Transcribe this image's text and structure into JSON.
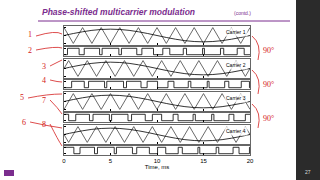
{
  "title": "Phase-shifted multicarrier modulation",
  "subtitle": "(contd.)",
  "page_number": "27",
  "annotations": [
    "1",
    "2",
    "3",
    "4",
    "5",
    "7",
    "6",
    "8",
    "90°",
    "90°",
    "90°"
  ],
  "chart_data": [
    {
      "type": "line",
      "label": "Carrier 1",
      "tick_labels": false,
      "grid": false,
      "xlim": [
        0,
        20
      ],
      "xticks": [
        0,
        5,
        10,
        15,
        20
      ],
      "ylim": [
        -1.2,
        1.2
      ],
      "yticks": [
        -1,
        0,
        1
      ],
      "series": [
        {
          "color": "#444444",
          "line_style": "solid",
          "x": [
            0,
            1,
            2,
            3,
            4,
            5,
            6,
            7,
            8,
            9,
            10,
            11,
            12,
            13,
            14,
            15,
            16,
            17,
            18,
            19,
            20
          ],
          "values": [
            1,
            -1,
            1,
            -1,
            1,
            -1,
            1,
            -1,
            1,
            -1,
            1,
            -1,
            1,
            -1,
            1,
            -1,
            1,
            -1,
            1,
            -1,
            1
          ]
        },
        {
          "color": "#000000",
          "line_style": "spline",
          "x": [
            0,
            1,
            2,
            3,
            4,
            5,
            6,
            7,
            8,
            9,
            10,
            11,
            12,
            13,
            14,
            15,
            16,
            17,
            18,
            19,
            20
          ],
          "values": [
            0,
            0.25,
            0.47,
            0.65,
            0.76,
            0.8,
            0.76,
            0.65,
            0.47,
            0.25,
            0,
            -0.25,
            -0.47,
            -0.65,
            -0.76,
            -0.8,
            -0.76,
            -0.65,
            -0.47,
            -0.25,
            0
          ]
        }
      ],
      "pulse": {
        "color": "#000000",
        "line_style": "step",
        "ylim": [
          -0.2,
          1.2
        ],
        "yticks": [
          0,
          1
        ],
        "x": [
          0,
          0.375,
          1.625,
          2.175,
          3.825,
          4.1,
          5.9,
          6.175,
          7.825,
          8.375,
          9.625,
          10.625,
          11.375,
          12.825,
          13.175,
          14.9,
          15.1,
          16.825,
          17.175,
          18.625,
          19.375,
          20
        ],
        "values": [
          0,
          1,
          0,
          1,
          0,
          1,
          0,
          1,
          0,
          1,
          0,
          1,
          0,
          1,
          0,
          1,
          0,
          1,
          0,
          1,
          0,
          0
        ]
      }
    },
    {
      "type": "line",
      "label": "Carrier 2",
      "tick_labels": false,
      "grid": false,
      "xlim": [
        0,
        20
      ],
      "xticks": [
        0,
        5,
        10,
        15,
        20
      ],
      "ylim": [
        -1.2,
        1.2
      ],
      "yticks": [
        -1,
        0,
        1
      ],
      "series": [
        {
          "color": "#444444",
          "line_style": "solid",
          "x": [
            -0.5,
            0.5,
            1.5,
            2.5,
            3.5,
            4.5,
            5.5,
            6.5,
            7.5,
            8.5,
            9.5,
            10.5,
            11.5,
            12.5,
            13.5,
            14.5,
            15.5,
            16.5,
            17.5,
            18.5,
            19.5,
            20.5
          ],
          "values": [
            -1,
            1,
            -1,
            1,
            -1,
            1,
            -1,
            1,
            -1,
            1,
            -1,
            1,
            -1,
            1,
            -1,
            1,
            -1,
            1,
            -1,
            1,
            -1,
            1
          ]
        },
        {
          "color": "#000000",
          "line_style": "spline",
          "x": [
            0,
            1,
            2,
            3,
            4,
            5,
            6,
            7,
            8,
            9,
            10,
            11,
            12,
            13,
            14,
            15,
            16,
            17,
            18,
            19,
            20
          ],
          "values": [
            0,
            0.25,
            0.47,
            0.65,
            0.76,
            0.8,
            0.76,
            0.65,
            0.47,
            0.25,
            0,
            -0.25,
            -0.47,
            -0.65,
            -0.76,
            -0.8,
            -0.76,
            -0.65,
            -0.47,
            -0.25,
            0
          ]
        }
      ],
      "pulse": {
        "color": "#000000",
        "line_style": "step",
        "ylim": [
          -0.2,
          1.2
        ],
        "yticks": [
          0,
          1
        ],
        "x": [
          0,
          0.82,
          2.18,
          2.64,
          4.36,
          4.6,
          6.4,
          6.72,
          8.28,
          8.94,
          10.06,
          11.18,
          11.82,
          13.36,
          13.64,
          15.4,
          15.6,
          17.28,
          17.72,
          19.06,
          19.94,
          20
        ],
        "values": [
          0,
          1,
          0,
          1,
          0,
          1,
          0,
          1,
          0,
          1,
          0,
          1,
          0,
          1,
          0,
          1,
          0,
          1,
          0,
          1,
          0,
          0
        ]
      }
    },
    {
      "type": "line",
      "label": "Carrier 3",
      "tick_labels": false,
      "grid": false,
      "xlim": [
        0,
        20
      ],
      "xticks": [
        0,
        5,
        10,
        15,
        20
      ],
      "ylim": [
        -1.2,
        1.2
      ],
      "yticks": [
        -1,
        0,
        1
      ],
      "series": [
        {
          "color": "#444444",
          "line_style": "solid",
          "x": [
            0,
            1,
            2,
            3,
            4,
            5,
            6,
            7,
            8,
            9,
            10,
            11,
            12,
            13,
            14,
            15,
            16,
            17,
            18,
            19,
            20
          ],
          "values": [
            -1,
            1,
            -1,
            1,
            -1,
            1,
            -1,
            1,
            -1,
            1,
            -1,
            1,
            -1,
            1,
            -1,
            1,
            -1,
            1,
            -1,
            1,
            -1
          ]
        },
        {
          "color": "#000000",
          "line_style": "spline",
          "x": [
            0,
            1,
            2,
            3,
            4,
            5,
            6,
            7,
            8,
            9,
            10,
            11,
            12,
            13,
            14,
            15,
            16,
            17,
            18,
            19,
            20
          ],
          "values": [
            0,
            0.25,
            0.47,
            0.65,
            0.76,
            0.8,
            0.76,
            0.65,
            0.47,
            0.25,
            0,
            -0.25,
            -0.47,
            -0.65,
            -0.76,
            -0.8,
            -0.76,
            -0.65,
            -0.47,
            -0.25,
            0
          ]
        }
      ],
      "pulse": {
        "color": "#000000",
        "line_style": "step",
        "ylim": [
          -0.2,
          1.2
        ],
        "yticks": [
          0,
          1
        ],
        "x": [
          0,
          0.5,
          1.265,
          2.735,
          3.12,
          4.88,
          5.12,
          6.88,
          7.265,
          8.735,
          9.5,
          10.5,
          11.735,
          12.265,
          13.88,
          14.12,
          15.88,
          16.12,
          17.735,
          18.265,
          19.5,
          20
        ],
        "values": [
          1,
          0,
          1,
          0,
          1,
          0,
          1,
          0,
          1,
          0,
          1,
          0,
          1,
          0,
          1,
          0,
          1,
          0,
          1,
          0,
          1,
          1
        ]
      }
    },
    {
      "type": "line",
      "label": "Carrier 4",
      "tick_labels": "x",
      "grid": false,
      "xlabel": "Time, ms",
      "xlim": [
        0,
        20
      ],
      "xticks": [
        0,
        5,
        10,
        15,
        20
      ],
      "ylim": [
        -1.2,
        1.2
      ],
      "yticks": [
        -1,
        0,
        1
      ],
      "series": [
        {
          "color": "#444444",
          "line_style": "solid",
          "x": [
            -0.5,
            0.5,
            1.5,
            2.5,
            3.5,
            4.5,
            5.5,
            6.5,
            7.5,
            8.5,
            9.5,
            10.5,
            11.5,
            12.5,
            13.5,
            14.5,
            15.5,
            16.5,
            17.5,
            18.5,
            19.5,
            20.5
          ],
          "values": [
            1,
            -1,
            1,
            -1,
            1,
            -1,
            1,
            -1,
            1,
            -1,
            1,
            -1,
            1,
            -1,
            1,
            -1,
            1,
            -1,
            1,
            -1,
            1,
            -1
          ]
        },
        {
          "color": "#000000",
          "line_style": "spline",
          "x": [
            0,
            1,
            2,
            3,
            4,
            5,
            6,
            7,
            8,
            9,
            10,
            11,
            12,
            13,
            14,
            15,
            16,
            17,
            18,
            19,
            20
          ],
          "values": [
            0,
            0.25,
            0.47,
            0.65,
            0.76,
            0.8,
            0.76,
            0.65,
            0.47,
            0.25,
            0,
            -0.25,
            -0.47,
            -0.65,
            -0.76,
            -0.8,
            -0.76,
            -0.65,
            -0.47,
            -0.25,
            0
          ]
        }
      ],
      "pulse": {
        "color": "#000000",
        "line_style": "step",
        "ylim": [
          -0.2,
          1.2
        ],
        "yticks": [
          0,
          1
        ],
        "x": [
          0,
          1.06,
          1.72,
          3.28,
          3.6,
          5.4,
          5.64,
          7.36,
          7.82,
          9.18,
          10.06,
          10.94,
          12.28,
          12.72,
          14.4,
          14.6,
          16.36,
          16.64,
          18.18,
          18.82,
          19.94,
          20
        ],
        "values": [
          1,
          0,
          1,
          0,
          1,
          0,
          1,
          0,
          1,
          0,
          1,
          0,
          1,
          0,
          1,
          0,
          1,
          0,
          1,
          0,
          1,
          1
        ]
      }
    }
  ]
}
